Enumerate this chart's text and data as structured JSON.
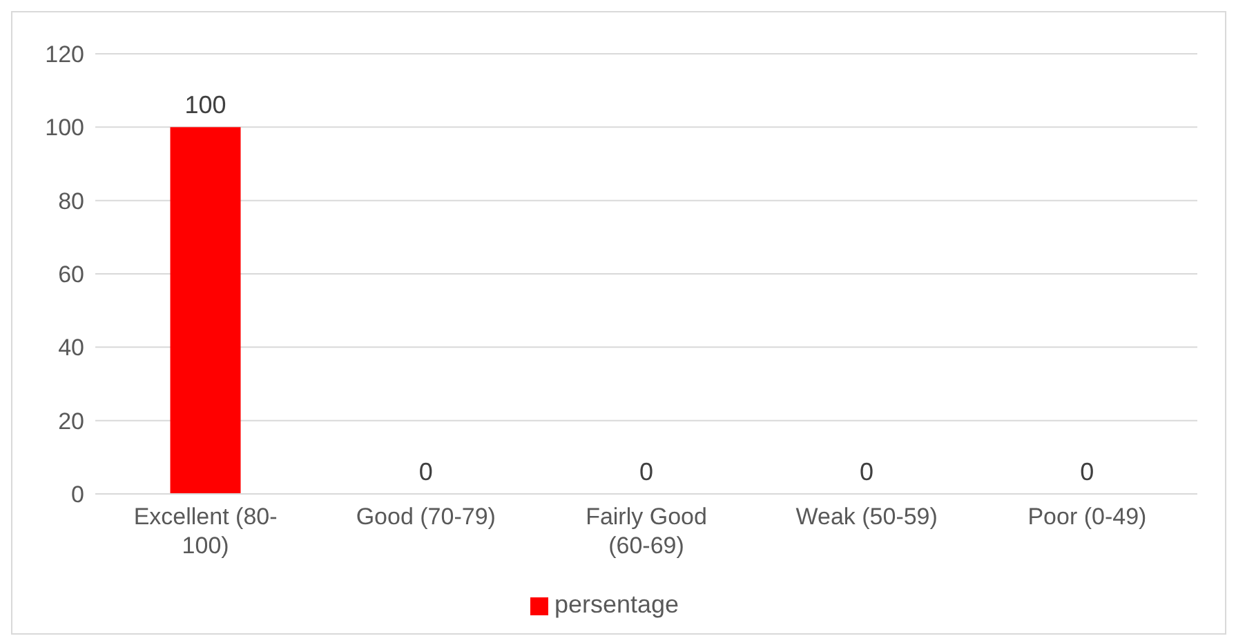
{
  "chart_data": {
    "type": "bar",
    "categories": [
      "Excellent (80-100)",
      "Good (70-79)",
      "Fairly Good (60-69)",
      "Weak (50-59)",
      "Poor (0-49)"
    ],
    "series": [
      {
        "name": "persentage",
        "color": "#ff0000",
        "values": [
          100,
          0,
          0,
          0,
          0
        ]
      }
    ],
    "ylim": [
      0,
      120
    ],
    "yticks": [
      0,
      20,
      40,
      60,
      80,
      100,
      120
    ],
    "grid": "y",
    "legend": "bottom",
    "data_labels": true
  }
}
